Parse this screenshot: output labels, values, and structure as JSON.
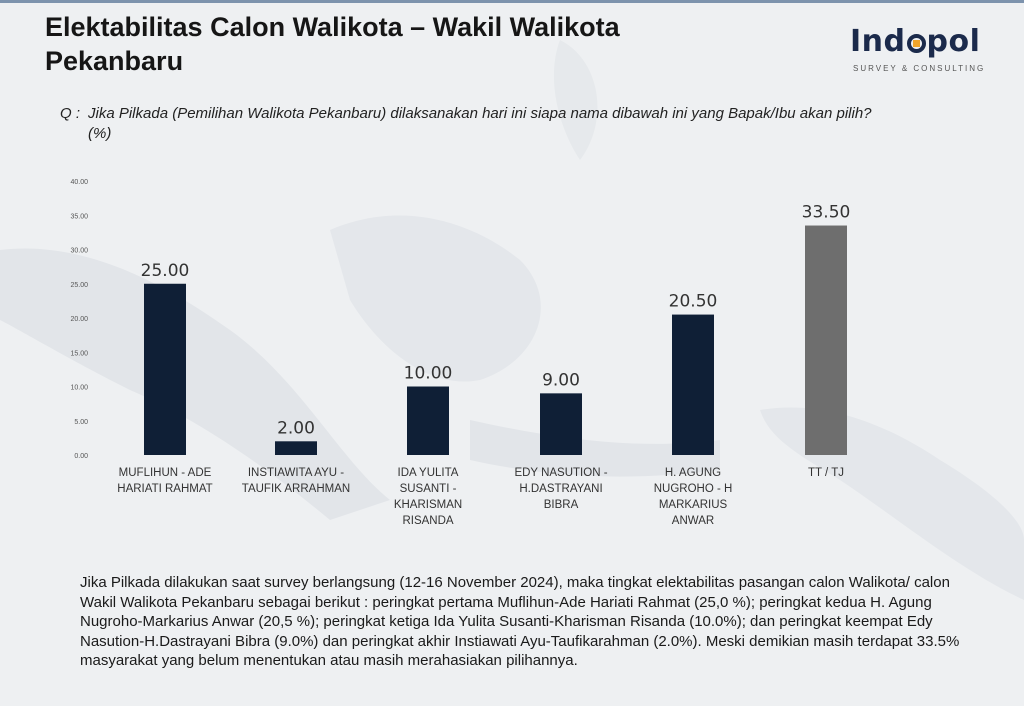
{
  "title": "Elektabilitas Calon Walikota – Wakil Walikota\nPekanbaru",
  "logo": {
    "name": "Indopol",
    "tagline": "SURVEY & CONSULTING",
    "accent_color": "#f0a52b",
    "text_color": "#1b2a4b"
  },
  "question": {
    "prefix": "Q :",
    "text": "Jika Pilkada (Pemilihan Walikota Pekanbaru) dilaksanakan hari ini siapa nama dibawah ini yang Bapak/Ibu akan pilih? (%)"
  },
  "chart_data": {
    "type": "bar",
    "title": "",
    "xlabel": "",
    "ylabel": "",
    "ylim": [
      0,
      40
    ],
    "yticks": [
      "0.00",
      "5.00",
      "10.00",
      "15.00",
      "20.00",
      "25.00",
      "30.00",
      "35.00",
      "40.00"
    ],
    "grid": false,
    "legend": "none",
    "categories": [
      [
        "MUFLIHUN - ADE",
        "HARIATI RAHMAT"
      ],
      [
        "INSTIAWITA AYU -",
        "TAUFIK ARRAHMAN"
      ],
      [
        "IDA YULITA",
        "SUSANTI -",
        "KHARISMAN",
        "RISANDA"
      ],
      [
        "EDY NASUTION -",
        "H.DASTRAYANI",
        "BIBRA"
      ],
      [
        "H. AGUNG",
        "NUGROHO - H",
        "MARKARIUS",
        "ANWAR"
      ],
      [
        "TT / TJ"
      ]
    ],
    "values": [
      25.0,
      2.0,
      10.0,
      9.0,
      20.5,
      33.5
    ],
    "data_labels": [
      "25.00",
      "2.00",
      "10.00",
      "9.00",
      "20.50",
      "33.50"
    ],
    "colors": [
      "#0f1f36",
      "#0f1f36",
      "#0f1f36",
      "#0f1f36",
      "#0f1f36",
      "#6e6e6e"
    ]
  },
  "description": "Jika Pilkada dilakukan saat survey berlangsung (12-16 November 2024), maka tingkat elektabilitas pasangan calon Walikota/ calon Wakil Walikota Pekanbaru sebagai berikut : peringkat pertama Muflihun-Ade Hariati Rahmat (25,0 %); peringkat kedua H. Agung Nugroho-Markarius Anwar (20,5 %); peringkat ketiga Ida Yulita Susanti-Kharisman Risanda (10.0%); dan peringkat keempat Edy Nasution-H.Dastrayani Bibra (9.0%) dan peringkat akhir Instiawati Ayu-Taufikarahman (2.0%). Meski demikian masih terdapat 33.5% masyarakat yang belum menentukan atau masih merahasiakan pilihannya."
}
